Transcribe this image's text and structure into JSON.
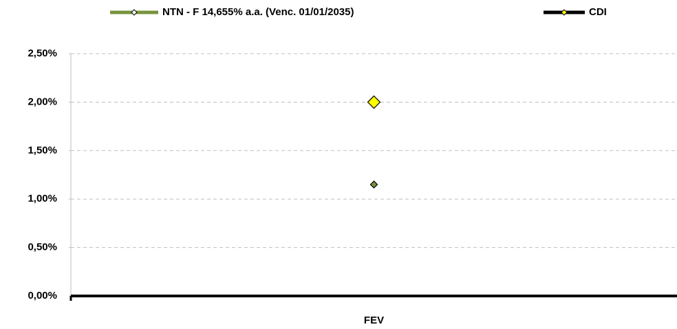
{
  "chart_data": {
    "type": "line",
    "categories": [
      "FEV"
    ],
    "series": [
      {
        "name": "NTN - F 14,655% a.a. (Venc. 01/01/2035)",
        "color": "#77933c",
        "marker_color": "#77933c",
        "values": [
          1.15
        ]
      },
      {
        "name": "CDI",
        "color": "#000000",
        "marker_color": "#ffff00",
        "values": [
          2.0
        ]
      }
    ],
    "ylim": [
      0,
      2.5
    ],
    "yticks": [
      {
        "value": 0,
        "label": "0,00%"
      },
      {
        "value": 0.5,
        "label": "0,50%"
      },
      {
        "value": 1,
        "label": "1,00%"
      },
      {
        "value": 1.5,
        "label": "1,50%"
      },
      {
        "value": 2,
        "label": "2,00%"
      },
      {
        "value": 2.5,
        "label": "2,50%"
      }
    ],
    "grid": true,
    "legend": "top"
  }
}
